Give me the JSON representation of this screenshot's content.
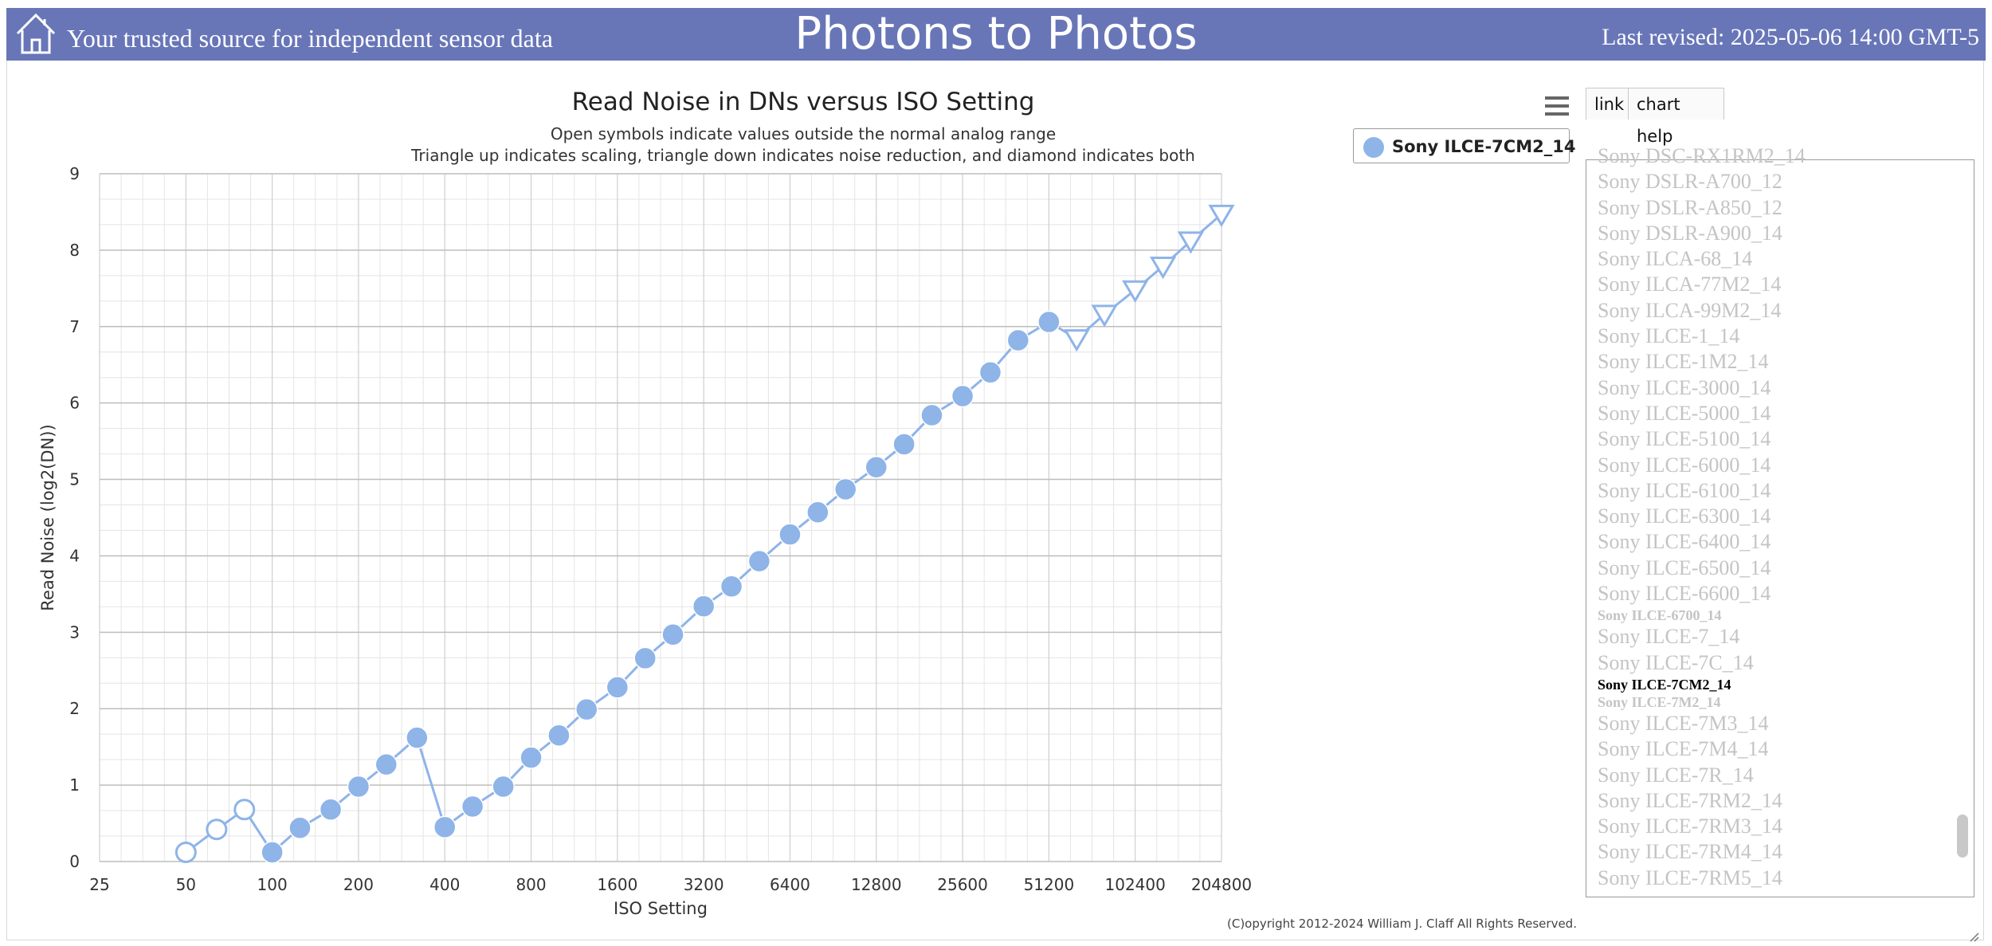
{
  "header": {
    "tagline": "Your trusted source for independent sensor data",
    "site_title": "Photons to Photos",
    "last_revised": "Last revised: 2025-05-06 14:00 GMT-5",
    "background": "#6876b8"
  },
  "toolbar": {
    "link_label": "link",
    "chart_help_label": "chart help",
    "menu_icon": "hamburger-menu-icon"
  },
  "legend": {
    "label": "Sony ILCE-7CM2_14",
    "color": "#8eb4e8"
  },
  "camera_list": [
    {
      "name": "Sony DSC-RX1RM2_14",
      "style": "normal"
    },
    {
      "name": "Sony DSLR-A700_12",
      "style": "normal"
    },
    {
      "name": "Sony DSLR-A850_12",
      "style": "normal"
    },
    {
      "name": "Sony DSLR-A900_14",
      "style": "normal"
    },
    {
      "name": "Sony ILCA-68_14",
      "style": "normal"
    },
    {
      "name": "Sony ILCA-77M2_14",
      "style": "normal"
    },
    {
      "name": "Sony ILCA-99M2_14",
      "style": "normal"
    },
    {
      "name": "Sony ILCE-1_14",
      "style": "normal"
    },
    {
      "name": "Sony ILCE-1M2_14",
      "style": "normal"
    },
    {
      "name": "Sony ILCE-3000_14",
      "style": "normal"
    },
    {
      "name": "Sony ILCE-5000_14",
      "style": "normal"
    },
    {
      "name": "Sony ILCE-5100_14",
      "style": "normal"
    },
    {
      "name": "Sony ILCE-6000_14",
      "style": "normal"
    },
    {
      "name": "Sony ILCE-6100_14",
      "style": "normal"
    },
    {
      "name": "Sony ILCE-6300_14",
      "style": "normal"
    },
    {
      "name": "Sony ILCE-6400_14",
      "style": "normal"
    },
    {
      "name": "Sony ILCE-6500_14",
      "style": "normal"
    },
    {
      "name": "Sony ILCE-6600_14",
      "style": "normal"
    },
    {
      "name": "Sony ILCE-6700_14",
      "style": "small"
    },
    {
      "name": "Sony ILCE-7_14",
      "style": "normal"
    },
    {
      "name": "Sony ILCE-7C_14",
      "style": "normal"
    },
    {
      "name": "Sony ILCE-7CM2_14",
      "style": "selected"
    },
    {
      "name": "Sony ILCE-7M2_14",
      "style": "small"
    },
    {
      "name": "Sony ILCE-7M3_14",
      "style": "normal"
    },
    {
      "name": "Sony ILCE-7M4_14",
      "style": "normal"
    },
    {
      "name": "Sony ILCE-7R_14",
      "style": "normal"
    },
    {
      "name": "Sony ILCE-7RM2_14",
      "style": "normal"
    },
    {
      "name": "Sony ILCE-7RM3_14",
      "style": "normal"
    },
    {
      "name": "Sony ILCE-7RM4_14",
      "style": "normal"
    },
    {
      "name": "Sony ILCE-7RM5_14",
      "style": "normal"
    }
  ],
  "copyright": "(C)opyright 2012-2024 William J. Claff All Rights Reserved.",
  "chart_data": {
    "type": "line",
    "title": "Read Noise in DNs versus ISO Setting",
    "subtitle": [
      "Open symbols indicate values outside the normal analog range",
      "Triangle up indicates scaling, triangle down indicates noise reduction, and diamond indicates both"
    ],
    "xlabel": "ISO Setting",
    "ylabel": "Read Noise (log2(DN))",
    "x_scale": "log2",
    "xlim": [
      25,
      204800
    ],
    "ylim": [
      0,
      9
    ],
    "x_ticks": [
      25,
      50,
      100,
      200,
      400,
      800,
      1600,
      3200,
      6400,
      12800,
      25600,
      51200,
      102400,
      204800
    ],
    "y_ticks": [
      0,
      1,
      2,
      3,
      4,
      5,
      6,
      7,
      8,
      9
    ],
    "grid": true,
    "series": [
      {
        "name": "Sony ILCE-7CM2_14",
        "color": "#8eb4e8",
        "points": [
          {
            "x": 50,
            "y": 0.12,
            "marker": "circle-open"
          },
          {
            "x": 64,
            "y": 0.42,
            "marker": "circle-open"
          },
          {
            "x": 80,
            "y": 0.68,
            "marker": "circle-open"
          },
          {
            "x": 100,
            "y": 0.12,
            "marker": "circle"
          },
          {
            "x": 125,
            "y": 0.44,
            "marker": "circle"
          },
          {
            "x": 160,
            "y": 0.68,
            "marker": "circle"
          },
          {
            "x": 200,
            "y": 0.98,
            "marker": "circle"
          },
          {
            "x": 250,
            "y": 1.27,
            "marker": "circle"
          },
          {
            "x": 320,
            "y": 1.62,
            "marker": "circle"
          },
          {
            "x": 400,
            "y": 0.45,
            "marker": "circle"
          },
          {
            "x": 500,
            "y": 0.72,
            "marker": "circle"
          },
          {
            "x": 640,
            "y": 0.98,
            "marker": "circle"
          },
          {
            "x": 800,
            "y": 1.36,
            "marker": "circle"
          },
          {
            "x": 1000,
            "y": 1.65,
            "marker": "circle"
          },
          {
            "x": 1250,
            "y": 1.99,
            "marker": "circle"
          },
          {
            "x": 1600,
            "y": 2.28,
            "marker": "circle"
          },
          {
            "x": 2000,
            "y": 2.66,
            "marker": "circle"
          },
          {
            "x": 2500,
            "y": 2.97,
            "marker": "circle"
          },
          {
            "x": 3200,
            "y": 3.34,
            "marker": "circle"
          },
          {
            "x": 4000,
            "y": 3.6,
            "marker": "circle"
          },
          {
            "x": 5000,
            "y": 3.93,
            "marker": "circle"
          },
          {
            "x": 6400,
            "y": 4.28,
            "marker": "circle"
          },
          {
            "x": 8000,
            "y": 4.57,
            "marker": "circle"
          },
          {
            "x": 10000,
            "y": 4.87,
            "marker": "circle"
          },
          {
            "x": 12800,
            "y": 5.16,
            "marker": "circle"
          },
          {
            "x": 16000,
            "y": 5.46,
            "marker": "circle"
          },
          {
            "x": 20000,
            "y": 5.84,
            "marker": "circle"
          },
          {
            "x": 25600,
            "y": 6.09,
            "marker": "circle"
          },
          {
            "x": 32000,
            "y": 6.4,
            "marker": "circle"
          },
          {
            "x": 40000,
            "y": 6.82,
            "marker": "circle"
          },
          {
            "x": 51200,
            "y": 7.06,
            "marker": "circle"
          },
          {
            "x": 64000,
            "y": 6.84,
            "marker": "triangle-down-open"
          },
          {
            "x": 80000,
            "y": 7.16,
            "marker": "triangle-down-open"
          },
          {
            "x": 102400,
            "y": 7.48,
            "marker": "triangle-down-open"
          },
          {
            "x": 128000,
            "y": 7.79,
            "marker": "triangle-down-open"
          },
          {
            "x": 160000,
            "y": 8.12,
            "marker": "triangle-down-open"
          },
          {
            "x": 204800,
            "y": 8.47,
            "marker": "triangle-down-open"
          }
        ]
      }
    ]
  }
}
